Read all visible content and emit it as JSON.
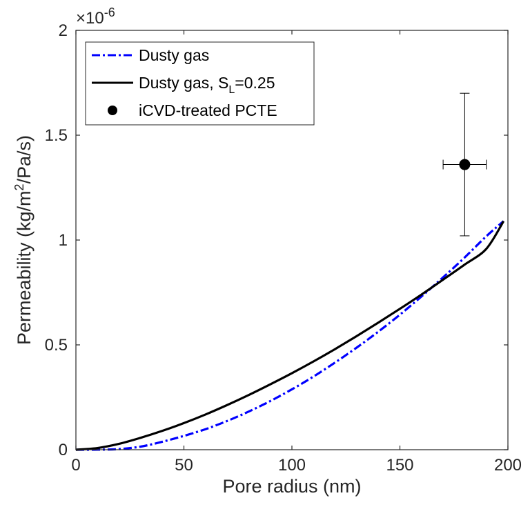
{
  "chart_data": {
    "type": "line",
    "xlabel": "Pore radius (nm)",
    "ylabel_prefix": "Permeability (kg/m",
    "ylabel_sup": "2",
    "ylabel_suffix": "/Pa/s)",
    "exponent_label": "×10",
    "exponent_power": "-6",
    "xlim": [
      0,
      200
    ],
    "ylim": [
      0,
      2
    ],
    "x_ticks": [
      "0",
      "50",
      "100",
      "150",
      "200"
    ],
    "y_ticks": [
      "0",
      "0.5",
      "1",
      "1.5",
      "2"
    ],
    "grid": false,
    "legend_position": "top-left",
    "legend": {
      "dusty_gas": "Dusty gas",
      "dusty_gas_sl_prefix": "Dusty gas, S",
      "dusty_gas_sl_sub": "L",
      "dusty_gas_sl_suffix": "=0.25",
      "icvd": "iCVD-treated PCTE"
    },
    "series": [
      {
        "name": "Dusty gas",
        "color": "#0000ff",
        "style": "dash-dot",
        "x": [
          0,
          10,
          20,
          30,
          40,
          50,
          60,
          70,
          80,
          90,
          100,
          110,
          120,
          130,
          140,
          150,
          160,
          170,
          180,
          190,
          198
        ],
        "y": [
          0,
          0.0002,
          0.0031,
          0.0148,
          0.038,
          0.066,
          0.098,
          0.137,
          0.182,
          0.232,
          0.288,
          0.349,
          0.416,
          0.487,
          0.563,
          0.644,
          0.731,
          0.822,
          0.917,
          1.018,
          1.09
        ]
      },
      {
        "name": "Dusty gas, SL=0.25",
        "color": "#000000",
        "style": "solid",
        "x": [
          0,
          10,
          20,
          30,
          40,
          50,
          60,
          70,
          80,
          90,
          100,
          110,
          120,
          130,
          140,
          150,
          160,
          170,
          180,
          190,
          198
        ],
        "y": [
          0,
          0.008,
          0.028,
          0.057,
          0.09,
          0.127,
          0.168,
          0.213,
          0.261,
          0.312,
          0.365,
          0.421,
          0.48,
          0.542,
          0.606,
          0.672,
          0.74,
          0.811,
          0.883,
          0.958,
          1.09
        ]
      }
    ],
    "points": [
      {
        "name": "iCVD-treated PCTE",
        "x": 180,
        "y": 1.36,
        "xerr": [
          170,
          190
        ],
        "yerr": [
          1.02,
          1.7
        ],
        "color": "#000000"
      }
    ]
  }
}
